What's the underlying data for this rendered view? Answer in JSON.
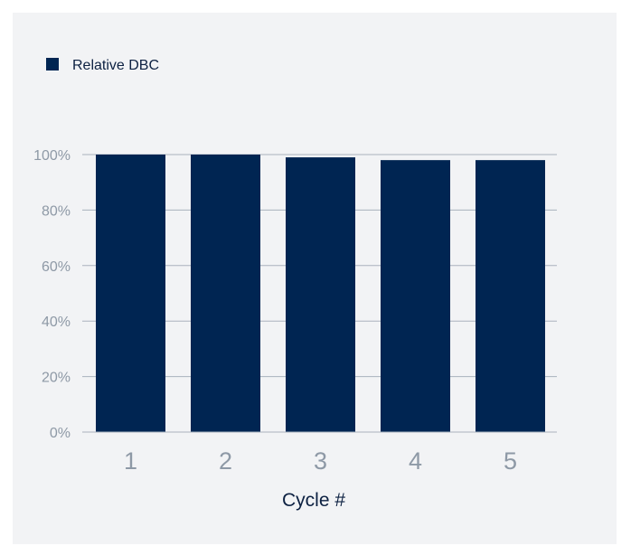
{
  "colors": {
    "bar": "#002552",
    "grid": "#a9b2bd",
    "tick_text": "#8e99a6",
    "label_text": "#0d2142"
  },
  "chart_data": {
    "type": "bar",
    "categories": [
      "1",
      "2",
      "3",
      "4",
      "5"
    ],
    "series": [
      {
        "name": "Relative DBC",
        "values": [
          100,
          100,
          99,
          98,
          98
        ]
      }
    ],
    "xlabel": "Cycle #",
    "ylabel": "",
    "ylim": [
      0,
      100
    ],
    "yticks": [
      0,
      20,
      40,
      60,
      80,
      100
    ],
    "ytick_labels": [
      "0%",
      "20%",
      "40%",
      "60%",
      "80%",
      "100%"
    ],
    "grid": true,
    "legend": "top-left"
  }
}
